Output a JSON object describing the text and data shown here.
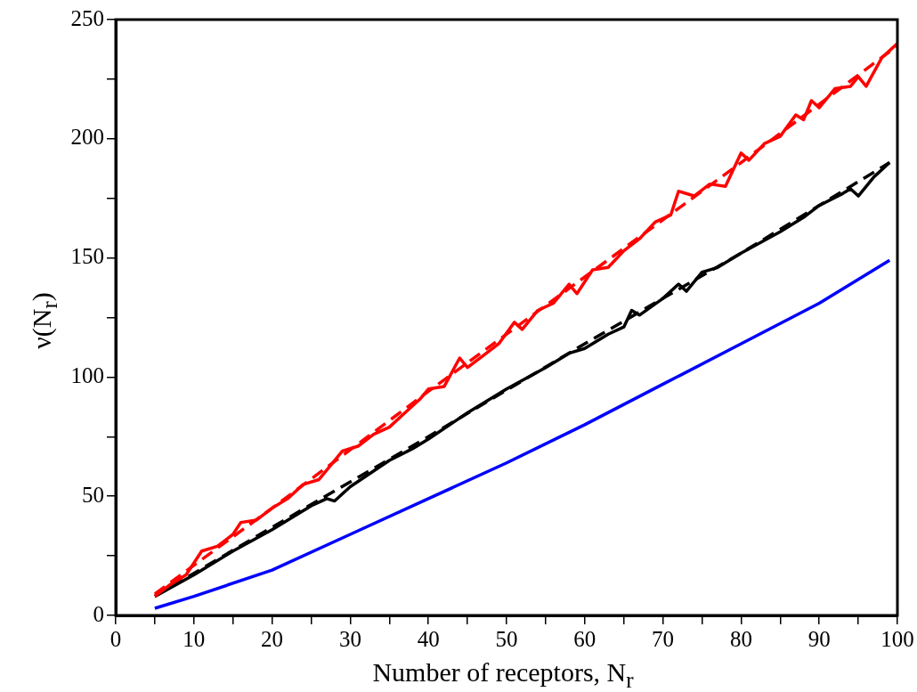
{
  "chart_data": {
    "type": "line",
    "xlabel": "Number of receptors, N$_{r}$",
    "ylabel": "ν(N$_{r}$)",
    "xlim": [
      0,
      100
    ],
    "ylim": [
      0,
      250
    ],
    "xticks": [
      0,
      {
        "value": 5,
        "label": null
      },
      10,
      {
        "value": 15,
        "label": null
      },
      20,
      {
        "value": 25,
        "label": null
      },
      30,
      {
        "value": 35,
        "label": null
      },
      40,
      {
        "value": 45,
        "label": null
      },
      50,
      {
        "value": 55,
        "label": null
      },
      60,
      {
        "value": 65,
        "label": null
      },
      70,
      {
        "value": 75,
        "label": null
      },
      80,
      {
        "value": 85,
        "label": null
      },
      90,
      {
        "value": 95,
        "label": null
      },
      100
    ],
    "yticks": [
      0,
      {
        "value": 25,
        "label": null
      },
      50,
      {
        "value": 75,
        "label": null
      },
      100,
      {
        "value": 125,
        "label": null
      },
      150,
      {
        "value": 175,
        "label": null
      },
      200,
      {
        "value": 225,
        "label": null
      },
      250
    ],
    "grid": false,
    "legend": false,
    "marker": "none",
    "series": [
      {
        "color": "#ff0000",
        "line_style": "solid",
        "x": [
          5,
          7,
          9,
          11,
          13,
          15,
          16,
          18,
          20,
          22,
          24,
          26,
          28,
          29,
          31,
          33,
          35,
          37,
          39,
          40,
          42,
          44,
          45,
          47,
          49,
          51,
          52,
          54,
          56,
          58,
          59,
          61,
          63,
          65,
          67,
          69,
          71,
          72,
          74,
          76,
          78,
          80,
          81,
          83,
          85,
          87,
          88,
          89,
          90,
          92,
          94,
          95,
          96,
          98,
          100
        ],
        "values": [
          8,
          13,
          17,
          27,
          29,
          34,
          39,
          40,
          45,
          49,
          55,
          57,
          65,
          69,
          71,
          76,
          79,
          85,
          91,
          95,
          96,
          108,
          104,
          109,
          114,
          123,
          120,
          128,
          131,
          139,
          135,
          145,
          146,
          153,
          158,
          165,
          168,
          178,
          176,
          181,
          180,
          194,
          191,
          198,
          201,
          210,
          208,
          216,
          213,
          221,
          222,
          226,
          222,
          234,
          240
        ]
      },
      {
        "color": "#ff0000",
        "line_style": "dashed",
        "x": [
          5,
          20,
          40,
          60,
          80,
          100
        ],
        "values": [
          9,
          45,
          94,
          142,
          190,
          239
        ]
      },
      {
        "color": "#000000",
        "line_style": "solid",
        "x": [
          5,
          10,
          15,
          20,
          25,
          27,
          28,
          30,
          35,
          38,
          40,
          45,
          50,
          55,
          58,
          60,
          63,
          65,
          66,
          67,
          70,
          72,
          73,
          75,
          77,
          80,
          85,
          88,
          90,
          93,
          94,
          95,
          97,
          99
        ],
        "values": [
          8,
          17,
          27,
          36,
          46,
          49,
          48,
          54,
          65,
          70,
          74,
          85,
          95,
          104,
          110,
          112,
          118,
          121,
          128,
          126,
          133,
          139,
          136,
          144,
          146,
          152,
          161,
          167,
          172,
          177,
          179,
          176,
          184,
          190
        ]
      },
      {
        "color": "#000000",
        "line_style": "dashed",
        "x": [
          5,
          20,
          40,
          60,
          80,
          99
        ],
        "values": [
          8,
          37,
          75,
          114,
          152,
          190
        ]
      },
      {
        "color": "#0000ff",
        "line_style": "solid",
        "x": [
          5,
          10,
          20,
          30,
          40,
          50,
          60,
          70,
          80,
          90,
          99
        ],
        "values": [
          3,
          8,
          19,
          34,
          49,
          64,
          80,
          97,
          114,
          131,
          149
        ]
      }
    ]
  }
}
